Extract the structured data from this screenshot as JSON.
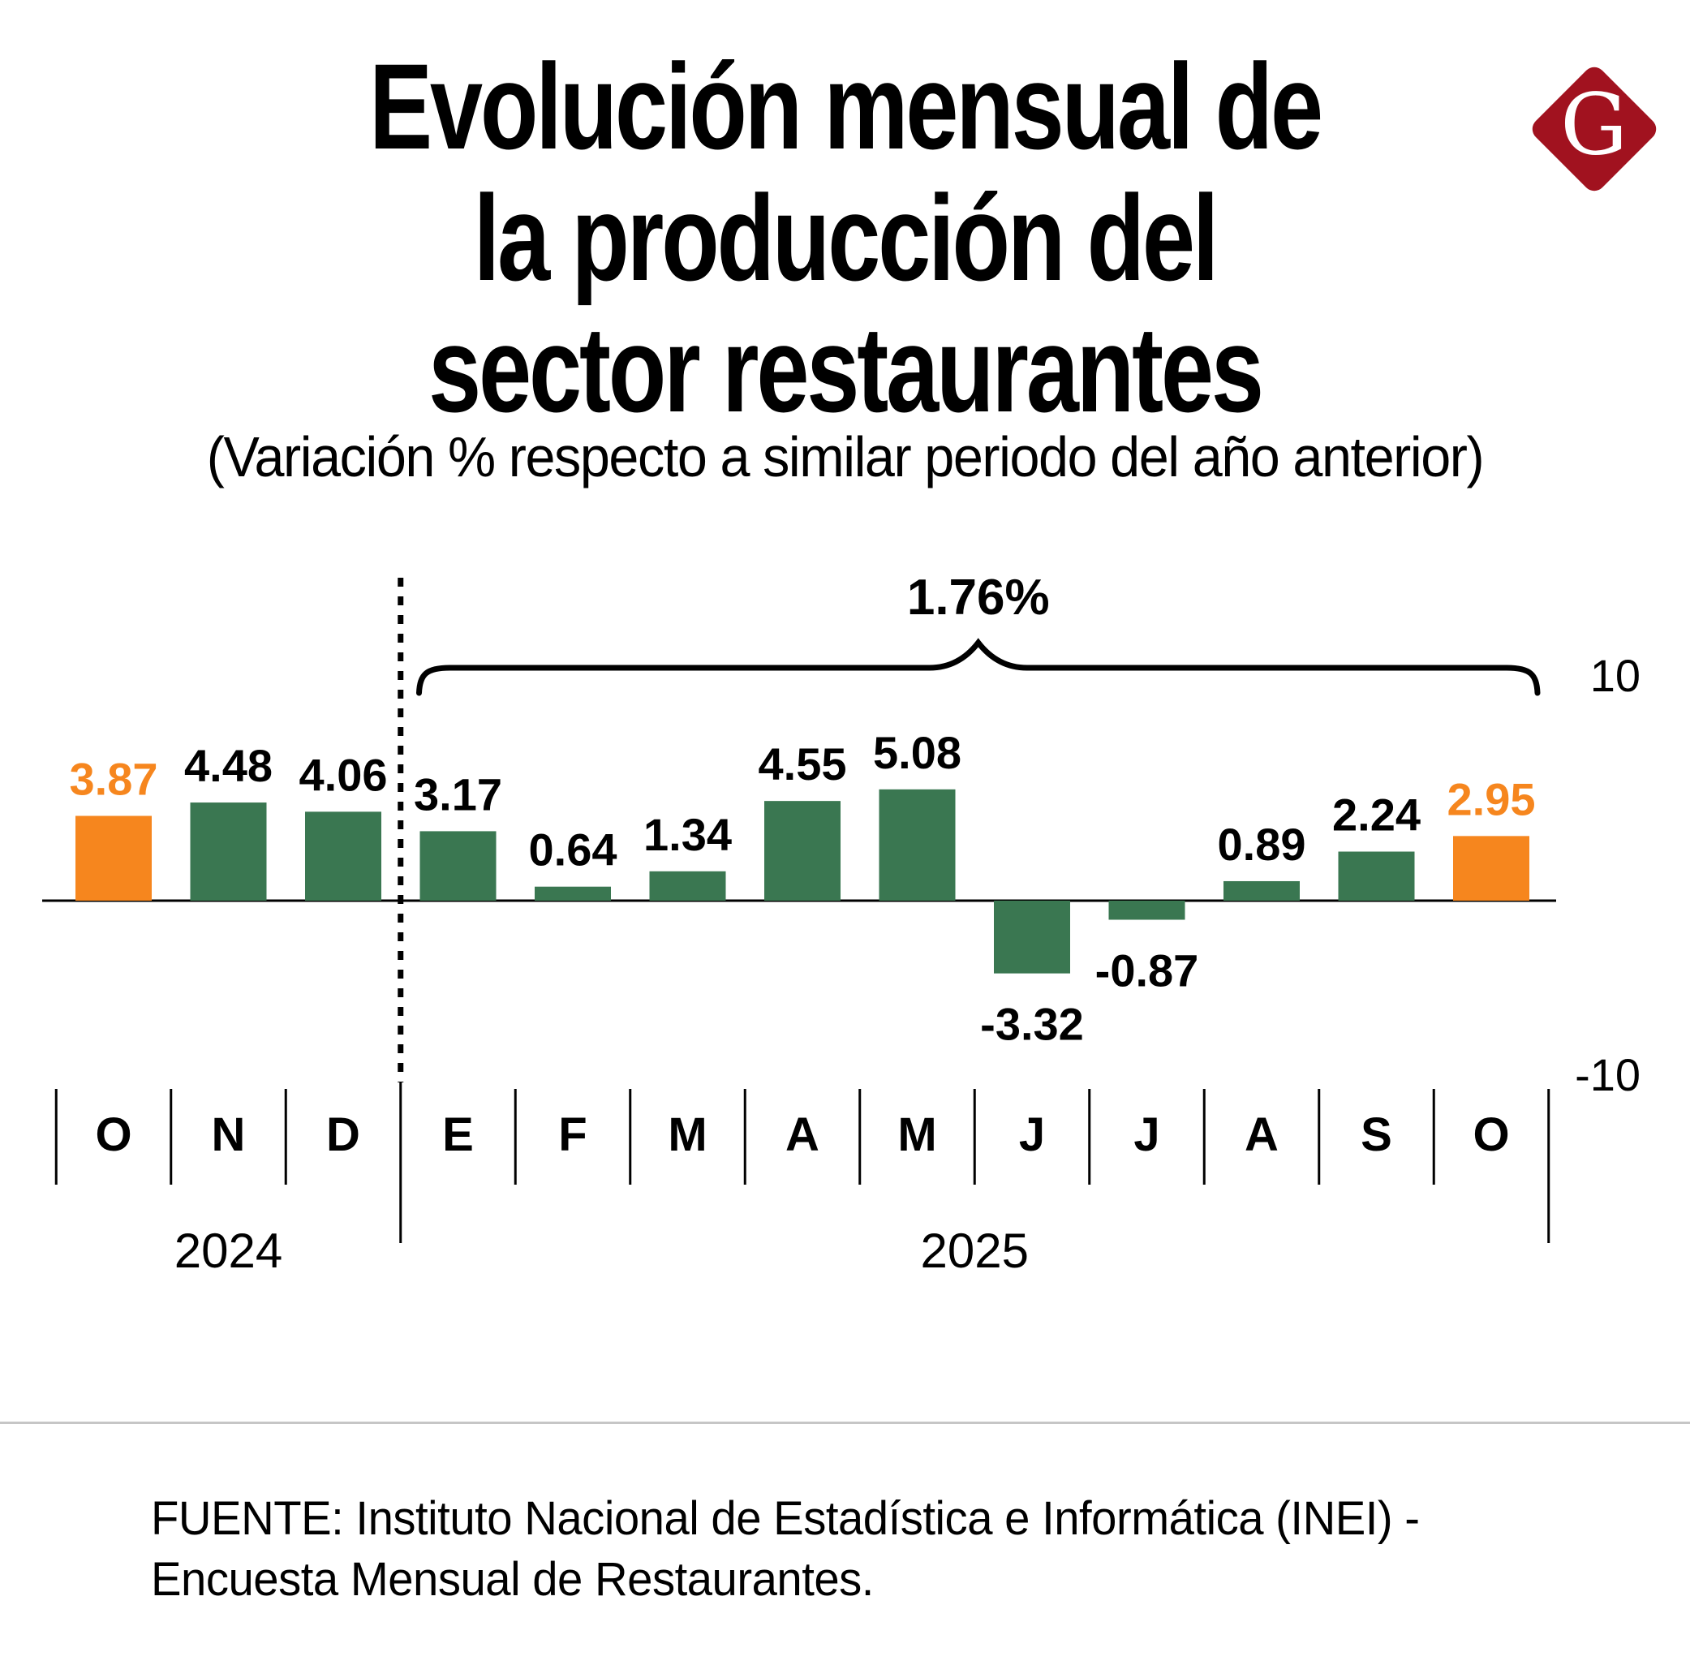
{
  "header": {
    "title_lines": [
      "Evolución mensual de",
      "la producción del",
      "sector restaurantes"
    ],
    "subtitle": "(Variación % respecto a similar periodo del año anterior)",
    "logo_letter": "G",
    "logo_color": "#A1121F"
  },
  "chart_data": {
    "type": "bar",
    "title": "Evolución mensual de la producción del sector restaurantes",
    "subtitle": "(Variación % respecto a similar periodo del año anterior)",
    "categories": [
      "O",
      "N",
      "D",
      "E",
      "F",
      "M",
      "A",
      "M",
      "J",
      "J",
      "A",
      "S",
      "O"
    ],
    "values": [
      3.87,
      4.48,
      4.06,
      3.17,
      0.64,
      1.34,
      4.55,
      5.08,
      -3.32,
      -0.87,
      0.89,
      2.24,
      2.95
    ],
    "value_labels": [
      "3.87",
      "4.48",
      "4.06",
      "3.17",
      "0.64",
      "1.34",
      "4.55",
      "5.08",
      "-3.32",
      "-0.87",
      "0.89",
      "2.24",
      "2.95"
    ],
    "bar_color": "#3A7751",
    "highlight_color": "#F6861E",
    "highlight_indexes": [
      0,
      12
    ],
    "ylim": [
      -10,
      10
    ],
    "y_axis_tick_labels": [
      "10",
      "-10"
    ],
    "grid": "off",
    "year_groups": [
      {
        "label": "2024",
        "from": 0,
        "to": 2
      },
      {
        "label": "2025",
        "from": 3,
        "to": 12
      }
    ],
    "annotation_brace": {
      "label": "1.76%",
      "from": 3,
      "to": 12
    }
  },
  "footer": {
    "source_lines": [
      "FUENTE: Instituto Nacional de Estadística e Informática (INEI) -",
      "Encuesta Mensual de Restaurantes."
    ]
  }
}
